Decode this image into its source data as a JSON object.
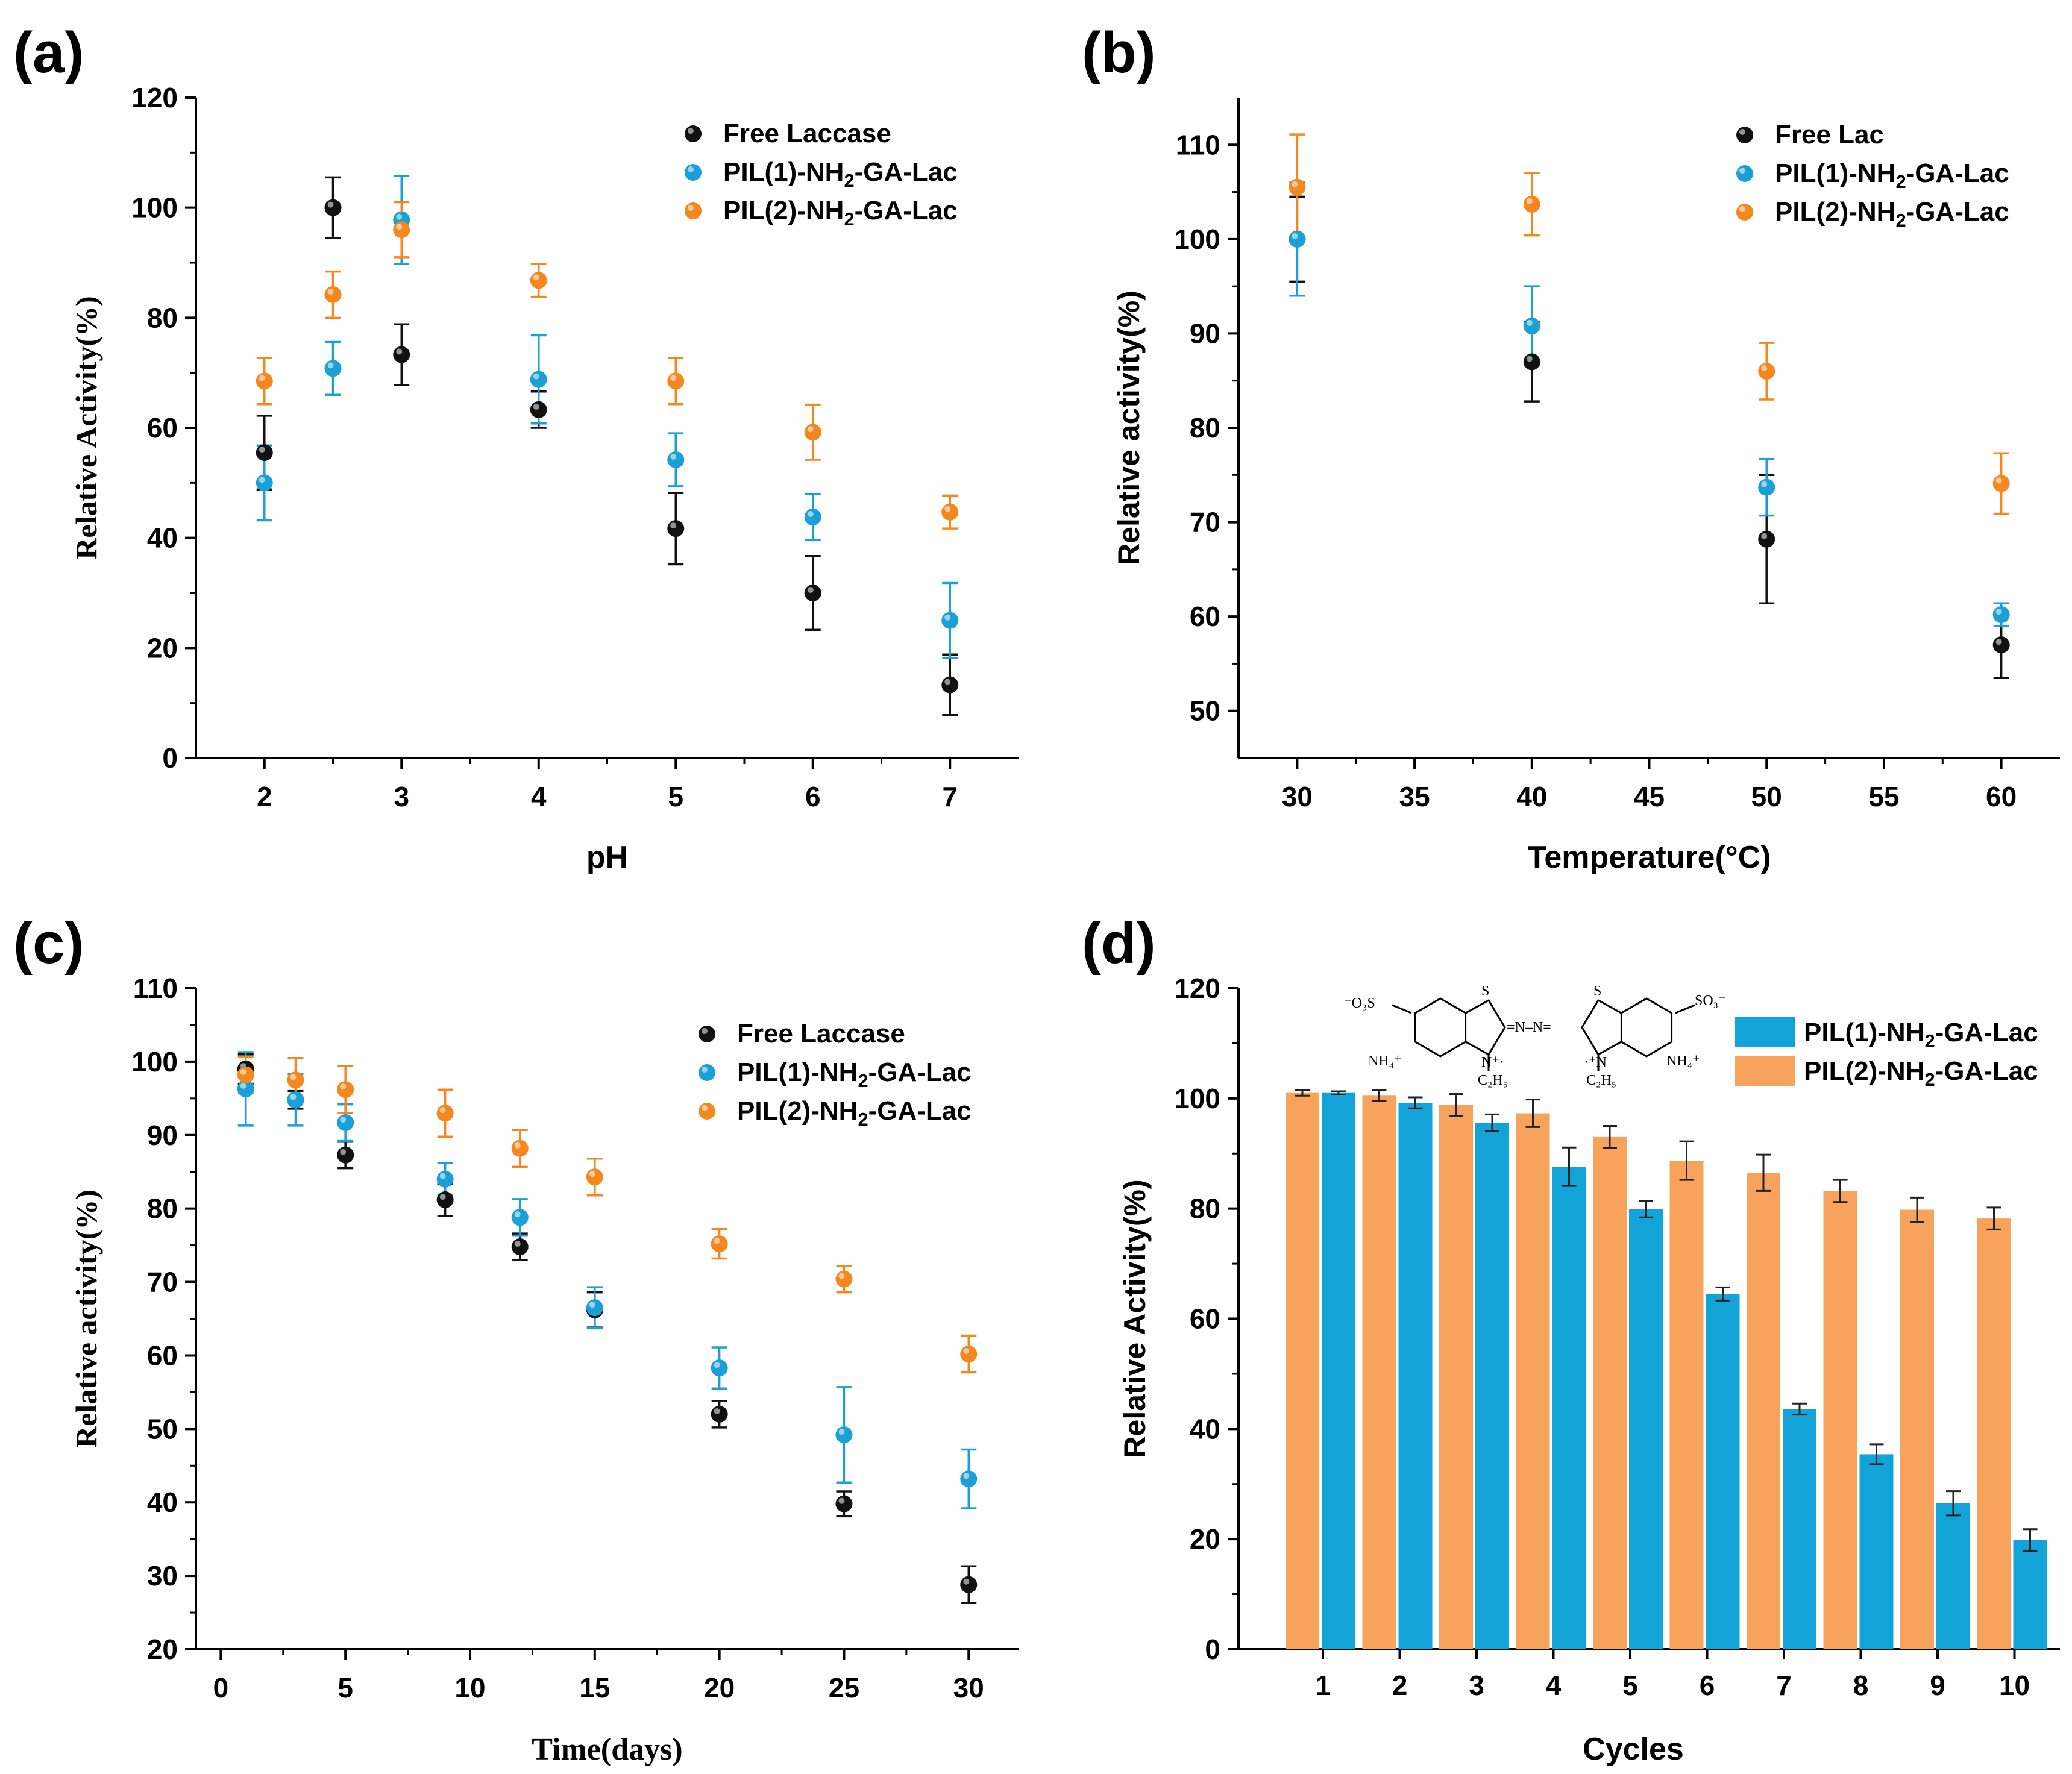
{
  "colors": {
    "free": "#111111",
    "pil1": "#1a9fd6",
    "pil2": "#f5871f",
    "bar1": "#12a4d9",
    "bar2": "#f7a35c",
    "axis": "#000000"
  },
  "chart_data": [
    {
      "id": "a",
      "panel_label": "(a)",
      "type": "scatter",
      "title": "",
      "xlabel": "pH",
      "ylabel": "Relative Activity(%)",
      "xlim": [
        1.5,
        7.5
      ],
      "ylim": [
        0,
        120
      ],
      "xticks": [
        2,
        3,
        4,
        5,
        6,
        7
      ],
      "yticks": [
        0,
        20,
        40,
        60,
        80,
        100,
        120
      ],
      "legend_position": "top-right",
      "series": [
        {
          "name": "Free Laccase",
          "color_key": "free",
          "x": [
            2,
            2.5,
            3,
            4,
            5,
            6,
            7
          ],
          "y": [
            55.5,
            100,
            73.3,
            63.3,
            41.7,
            30,
            13.3
          ],
          "err": [
            6.7,
            5.5,
            5.5,
            3.3,
            6.5,
            6.7,
            5.5
          ]
        },
        {
          "name": "PIL(1)-NH2-GA-Lac",
          "color_key": "pil1",
          "x": [
            2,
            2.5,
            3,
            4,
            5,
            6,
            7
          ],
          "y": [
            50,
            70.8,
            97.8,
            68.8,
            54.2,
            43.8,
            25
          ],
          "err": [
            6.8,
            4.8,
            8,
            8,
            4.8,
            4.2,
            6.8
          ]
        },
        {
          "name": "PIL(2)-NH2-GA-Lac",
          "color_key": "pil2",
          "x": [
            2,
            2.5,
            3,
            4,
            5,
            6,
            7
          ],
          "y": [
            68.5,
            84.2,
            96,
            86.8,
            68.5,
            59.2,
            44.7
          ],
          "err": [
            4.2,
            4.2,
            5,
            3,
            4.2,
            5,
            3
          ]
        }
      ]
    },
    {
      "id": "b",
      "panel_label": "(b)",
      "type": "scatter",
      "title": "",
      "xlabel": "Temperature(°C)",
      "ylabel": "Relative activity(%)",
      "xlim": [
        27.5,
        62.5
      ],
      "ylim": [
        45,
        115
      ],
      "xticks": [
        30,
        35,
        40,
        45,
        50,
        55,
        60
      ],
      "yticks": [
        50,
        60,
        70,
        80,
        90,
        100,
        110
      ],
      "legend_position": "top-right",
      "series": [
        {
          "name": "Free Lac",
          "color_key": "free",
          "x": [
            30,
            40,
            50,
            60
          ],
          "y": [
            100,
            87,
            68.2,
            57
          ],
          "err": [
            4.5,
            4.2,
            6.8,
            3.5
          ]
        },
        {
          "name": "PIL(1)-NH2-GA-Lac",
          "color_key": "pil1",
          "x": [
            30,
            40,
            50,
            60
          ],
          "y": [
            100,
            90.8,
            73.7,
            60.2
          ],
          "err": [
            6,
            4.2,
            3,
            1.2
          ]
        },
        {
          "name": "PIL(2)-NH2-GA-Lac",
          "color_key": "pil2",
          "x": [
            30,
            40,
            50,
            60
          ],
          "y": [
            105.5,
            103.7,
            86,
            74.1
          ],
          "err": [
            5.6,
            3.3,
            3,
            3.2
          ]
        }
      ]
    },
    {
      "id": "c",
      "panel_label": "(c)",
      "type": "scatter",
      "title": "",
      "xlabel": "Time(days)",
      "ylabel": "Relative activity(%)",
      "xlim": [
        -1,
        32
      ],
      "ylim": [
        20,
        110
      ],
      "xticks": [
        0,
        5,
        10,
        15,
        20,
        25,
        30
      ],
      "yticks": [
        20,
        30,
        40,
        50,
        60,
        70,
        80,
        90,
        100,
        110
      ],
      "legend_position": "top-right",
      "series": [
        {
          "name": "Free Laccase",
          "color_key": "free",
          "x": [
            1,
            3,
            5,
            9,
            12,
            15,
            20,
            25,
            30
          ],
          "y": [
            99,
            94.8,
            87.3,
            81.2,
            74.8,
            66.2,
            52,
            39.8,
            28.8
          ],
          "err": [
            2,
            1.2,
            1.8,
            2.2,
            1.8,
            2.4,
            1.8,
            1.7,
            2.5
          ]
        },
        {
          "name": "PIL(1)-NH2-GA-Lac",
          "color_key": "pil1",
          "x": [
            1,
            3,
            5,
            9,
            12,
            15,
            20,
            25,
            30
          ],
          "y": [
            96.3,
            94.8,
            91.7,
            84,
            78.8,
            66.5,
            58.3,
            49.2,
            43.2
          ],
          "err": [
            5,
            3.5,
            2.5,
            2.2,
            2.5,
            2.8,
            2.8,
            6.5,
            4
          ]
        },
        {
          "name": "PIL(2)-NH2-GA-Lac",
          "color_key": "pil2",
          "x": [
            1,
            3,
            5,
            9,
            12,
            15,
            20,
            25,
            30
          ],
          "y": [
            98.2,
            97.5,
            96.2,
            93,
            88.2,
            84.3,
            75.2,
            70.4,
            60.2
          ],
          "err": [
            2.5,
            3,
            3.2,
            3.2,
            2.5,
            2.5,
            2,
            1.8,
            2.5
          ]
        }
      ]
    },
    {
      "id": "d",
      "panel_label": "(d)",
      "type": "bar",
      "title": "",
      "xlabel": "Cycles",
      "ylabel": "Relative Activity(%)",
      "ylim": [
        0,
        120
      ],
      "yticks": [
        0,
        20,
        40,
        60,
        80,
        100,
        120
      ],
      "categories": [
        "1",
        "2",
        "3",
        "4",
        "5",
        "6",
        "7",
        "8",
        "9",
        "10"
      ],
      "legend_position": "top-right",
      "inset": {
        "left_group": "⁻O₃S",
        "right_group": "SO₃⁻",
        "ring_atom": "S",
        "left_nitrogen": "N⁺·",
        "right_nitrogen": "·⁺N",
        "azo_bridge": "=N–N=",
        "left_counterion": "NH₄⁺",
        "right_counterion": "NH₄⁺",
        "left_ethyl": "C₂H₅",
        "right_ethyl": "C₂H₅"
      },
      "series": [
        {
          "name": "PIL(2)-NH2-GA-Lac",
          "color_key": "bar2",
          "values": [
            101,
            100.5,
            98.8,
            97.3,
            93,
            88.7,
            86.5,
            83.2,
            79.8,
            78.2
          ],
          "err": [
            0.5,
            1,
            2,
            2.5,
            2,
            3.5,
            3.3,
            2,
            2.2,
            2
          ]
        },
        {
          "name": "PIL(1)-NH2-GA-Lac",
          "color_key": "bar1",
          "values": [
            101,
            99.2,
            95.6,
            87.6,
            79.9,
            64.5,
            43.6,
            35.4,
            26.5,
            19.8
          ],
          "err": [
            0.3,
            1,
            1.5,
            3.5,
            1.5,
            1.2,
            1,
            1.8,
            2.2,
            2
          ]
        }
      ]
    }
  ]
}
